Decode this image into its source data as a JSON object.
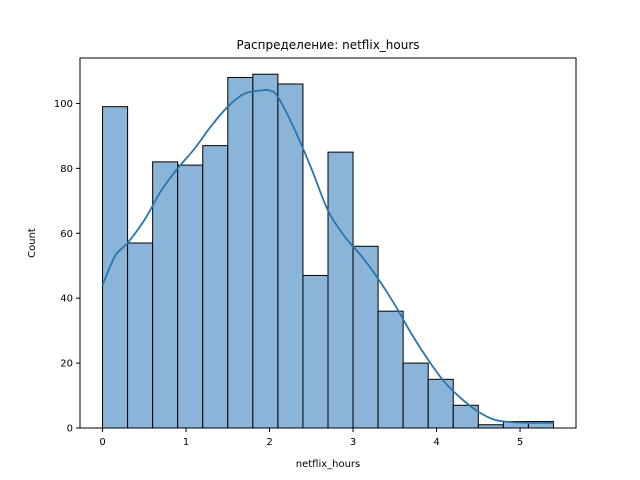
{
  "chart_data": {
    "type": "bar",
    "title": "Распределение: netflix_hours",
    "xlabel": "netflix_hours",
    "ylabel": "Count",
    "xlim": [
      -0.27,
      5.67
    ],
    "ylim": [
      0,
      114
    ],
    "x_ticks": [
      0,
      1,
      2,
      3,
      4,
      5
    ],
    "y_ticks": [
      0,
      20,
      40,
      60,
      80,
      100
    ],
    "grid": false,
    "bin_width": 0.3,
    "bin_start": 0.0,
    "bins": [
      {
        "start": 0.0,
        "end": 0.3,
        "count": 99
      },
      {
        "start": 0.3,
        "end": 0.6,
        "count": 57
      },
      {
        "start": 0.6,
        "end": 0.9,
        "count": 82
      },
      {
        "start": 0.9,
        "end": 1.2,
        "count": 81
      },
      {
        "start": 1.2,
        "end": 1.5,
        "count": 87
      },
      {
        "start": 1.5,
        "end": 1.8,
        "count": 108
      },
      {
        "start": 1.8,
        "end": 2.1,
        "count": 109
      },
      {
        "start": 2.1,
        "end": 2.4,
        "count": 106
      },
      {
        "start": 2.4,
        "end": 2.7,
        "count": 47
      },
      {
        "start": 2.7,
        "end": 3.0,
        "count": 85
      },
      {
        "start": 3.0,
        "end": 3.3,
        "count": 56
      },
      {
        "start": 3.3,
        "end": 3.6,
        "count": 36
      },
      {
        "start": 3.6,
        "end": 3.9,
        "count": 20
      },
      {
        "start": 3.9,
        "end": 4.2,
        "count": 15
      },
      {
        "start": 4.2,
        "end": 4.5,
        "count": 7
      },
      {
        "start": 4.5,
        "end": 4.8,
        "count": 1
      },
      {
        "start": 4.8,
        "end": 5.1,
        "count": 2
      },
      {
        "start": 5.1,
        "end": 5.4,
        "count": 2
      }
    ],
    "kde": {
      "x": [
        0,
        0.15,
        0.3,
        0.5,
        0.7,
        0.9,
        1.1,
        1.3,
        1.5,
        1.7,
        1.9,
        2.0,
        2.1,
        2.3,
        2.5,
        2.7,
        2.9,
        3.1,
        3.3,
        3.5,
        3.7,
        3.9,
        4.1,
        4.3,
        4.5,
        4.7,
        4.9,
        5.1,
        5.4
      ],
      "y": [
        44,
        53,
        57,
        64,
        73,
        80,
        86,
        93,
        99,
        103,
        104,
        104,
        102,
        92,
        80,
        67,
        59,
        53,
        46,
        38,
        29,
        21,
        14,
        9,
        5,
        2.5,
        1.8,
        1.6,
        1.6
      ]
    },
    "colors": {
      "bar_fill": "#8ab5d8",
      "bar_edge": "#000000",
      "kde_line": "#2a74b0"
    }
  }
}
